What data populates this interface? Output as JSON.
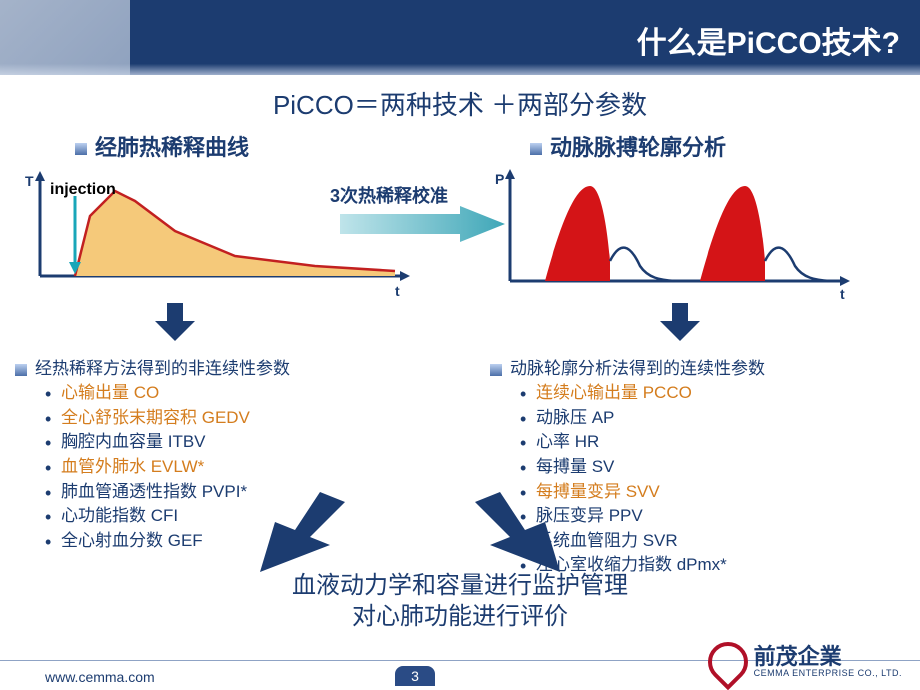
{
  "header": {
    "title": "什么是PiCCO技术?"
  },
  "subtitle": "PiCCO＝两种技术 ＋两部分参数",
  "left": {
    "section": "经肺热稀释曲线",
    "chart": {
      "type": "area",
      "y_label": "T",
      "x_label": "t",
      "injection": "injection",
      "fill": "#f5c97a",
      "stroke": "#c22020",
      "axis": "#1c3c70",
      "arrow": "#18a6b8",
      "curve_x": [
        60,
        75,
        100,
        120,
        160,
        220,
        300,
        380
      ],
      "curve_y": [
        100,
        40,
        15,
        25,
        55,
        80,
        90,
        95
      ]
    },
    "params_head": "经热稀释方法得到的非连续性参数",
    "params": [
      {
        "t": "心输出量   CO",
        "hot": true
      },
      {
        "t": "全心舒张末期容积    GEDV",
        "hot": true
      },
      {
        "t": "胸腔内血容量 ITBV",
        "hot": false
      },
      {
        "t": "血管外肺水   EVLW*",
        "hot": true
      },
      {
        "t": "肺血管通透性指数 PVPI*",
        "hot": false
      },
      {
        "t": "心功能指数 CFI",
        "hot": false
      },
      {
        "t": "全心射血分数 GEF",
        "hot": false
      }
    ]
  },
  "calib": "3次热稀释校准",
  "calib_arrow": {
    "fill": "#72c2cf"
  },
  "right": {
    "section": "动脉脉搏轮廓分析",
    "chart": {
      "type": "multi-pulse",
      "y_label": "P",
      "x_label": "t",
      "fill": "#d41417",
      "stroke": "#1c3c70",
      "axis": "#1c3c70"
    },
    "params_head": "动脉轮廓分析法得到的连续性参数",
    "params": [
      {
        "t": "连续心输出量 PCCO",
        "hot": true
      },
      {
        "t": "动脉压 AP",
        "hot": false
      },
      {
        "t": "心率 HR",
        "hot": false
      },
      {
        "t": "每搏量 SV",
        "hot": false
      },
      {
        "t": "每搏量变异 SVV",
        "hot": true
      },
      {
        "t": "脉压变异 PPV",
        "hot": false
      },
      {
        "t": "系统血管阻力 SVR",
        "hot": false
      },
      {
        "t": "左心室收缩力指数 dPmx*",
        "hot": false
      }
    ]
  },
  "down_arrow": {
    "fill": "#1c3c70"
  },
  "bottom": {
    "l1": "血液动力学和容量进行监护管理",
    "l2": "对心肺功能进行评价"
  },
  "footer": {
    "url": "www.cemma.com",
    "page": "3",
    "logo_cn": "前茂企業",
    "logo_en": "CEMMA ENTERPRISE CO., LTD."
  }
}
